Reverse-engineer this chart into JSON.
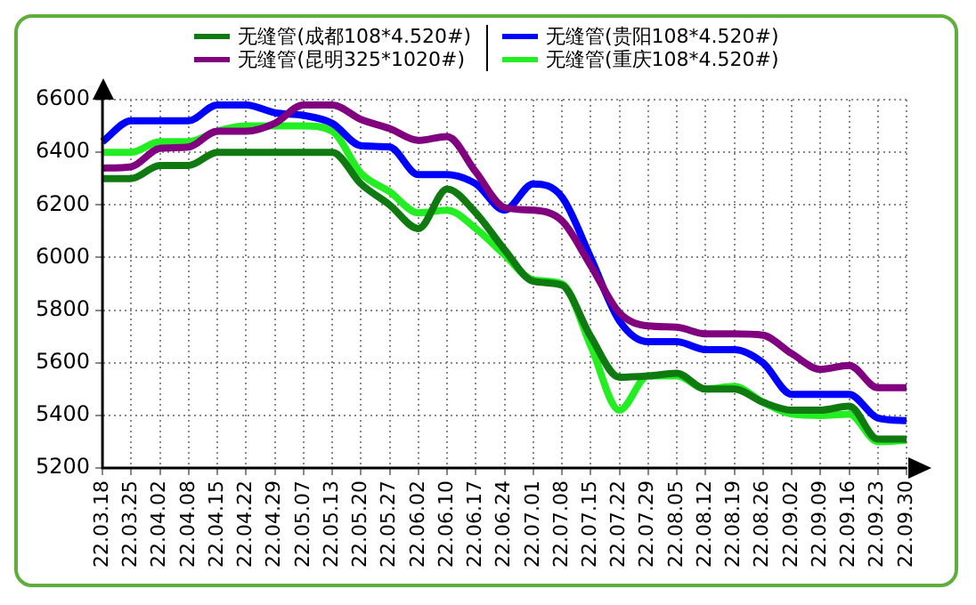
{
  "chart_data": {
    "type": "line",
    "categories": [
      "22.03.18",
      "22.03.25",
      "22.04.02",
      "22.04.08",
      "22.04.15",
      "22.04.22",
      "22.04.29",
      "22.05.07",
      "22.05.13",
      "22.05.20",
      "22.05.27",
      "22.06.02",
      "22.06.10",
      "22.06.17",
      "22.06.24",
      "22.07.01",
      "22.07.08",
      "22.07.15",
      "22.07.22",
      "22.07.29",
      "22.08.05",
      "22.08.12",
      "22.08.19",
      "22.08.26",
      "22.09.02",
      "22.09.09",
      "22.09.16",
      "22.09.23",
      "22.09.30"
    ],
    "series": [
      {
        "name": "无缝管(成都108*4.520#)",
        "color": "#0f7a0f",
        "values": [
          6300,
          6300,
          6350,
          6350,
          6400,
          6400,
          6400,
          6400,
          6400,
          6280,
          6200,
          6110,
          6260,
          6170,
          6030,
          5910,
          5895,
          5700,
          5545,
          5550,
          5560,
          5500,
          5500,
          5450,
          5420,
          5420,
          5435,
          5310,
          5310
        ]
      },
      {
        "name": "无缝管(昆明325*1020#)",
        "color": "#800080",
        "values": [
          6340,
          6345,
          6415,
          6420,
          6480,
          6480,
          6510,
          6580,
          6580,
          6525,
          6490,
          6445,
          6460,
          6325,
          6190,
          6180,
          6140,
          5970,
          5790,
          5740,
          5735,
          5710,
          5710,
          5705,
          5635,
          5575,
          5590,
          5505,
          5505
        ]
      },
      {
        "name": "无缝管(贵阳108*4.520#)",
        "color": "#0000ff",
        "values": [
          6440,
          6520,
          6520,
          6520,
          6580,
          6580,
          6550,
          6540,
          6510,
          6425,
          6420,
          6315,
          6315,
          6280,
          6180,
          6280,
          6230,
          6000,
          5760,
          5680,
          5680,
          5650,
          5650,
          5600,
          5480,
          5480,
          5480,
          5390,
          5380
        ]
      },
      {
        "name": "无缝管(重庆108*4.520#)",
        "color": "#22ee22",
        "values": [
          6400,
          6400,
          6440,
          6440,
          6480,
          6500,
          6500,
          6500,
          6480,
          6320,
          6250,
          6170,
          6180,
          6110,
          6010,
          5915,
          5900,
          5665,
          5420,
          5550,
          5550,
          5500,
          5510,
          5450,
          5405,
          5400,
          5405,
          5300,
          5305
        ]
      }
    ],
    "ylim": [
      5200,
      6600
    ],
    "yticks": [
      5200,
      5400,
      5600,
      5800,
      6000,
      6200,
      6400,
      6600
    ],
    "grid": true,
    "legend": "top",
    "marker": "none",
    "line_style": "solid"
  }
}
